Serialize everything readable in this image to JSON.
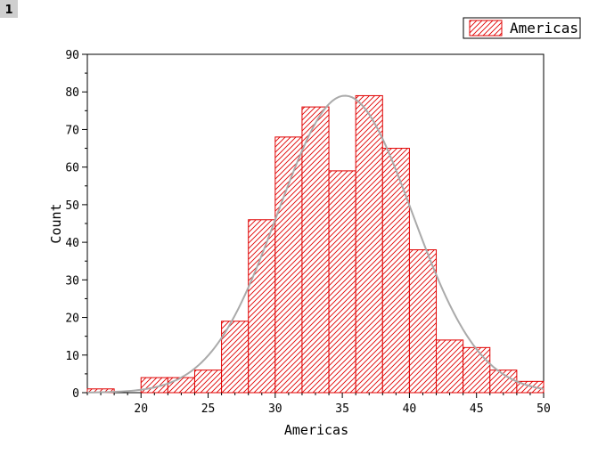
{
  "page": {
    "badge": "1"
  },
  "chart_data": {
    "type": "bar",
    "subtype": "histogram",
    "xlabel": "Americas",
    "ylabel": "Count",
    "xlim": [
      16,
      50
    ],
    "ylim": [
      0,
      90
    ],
    "x_ticks": [
      20,
      25,
      30,
      35,
      40,
      45,
      50
    ],
    "y_ticks": [
      0,
      10,
      20,
      30,
      40,
      50,
      60,
      70,
      80,
      90
    ],
    "legend": {
      "placement": "top-right",
      "entries": [
        "Americas"
      ]
    },
    "grid": false,
    "series": [
      {
        "name": "Americas",
        "bin_width": 2,
        "bins": [
          {
            "start": 16,
            "end": 18,
            "count": 1
          },
          {
            "start": 18,
            "end": 20,
            "count": 0
          },
          {
            "start": 20,
            "end": 22,
            "count": 4
          },
          {
            "start": 22,
            "end": 24,
            "count": 4
          },
          {
            "start": 24,
            "end": 26,
            "count": 6
          },
          {
            "start": 26,
            "end": 28,
            "count": 19
          },
          {
            "start": 28,
            "end": 30,
            "count": 46
          },
          {
            "start": 30,
            "end": 32,
            "count": 68
          },
          {
            "start": 32,
            "end": 34,
            "count": 76
          },
          {
            "start": 34,
            "end": 36,
            "count": 59
          },
          {
            "start": 36,
            "end": 38,
            "count": 79
          },
          {
            "start": 38,
            "end": 40,
            "count": 65
          },
          {
            "start": 40,
            "end": 42,
            "count": 38
          },
          {
            "start": 42,
            "end": 44,
            "count": 14
          },
          {
            "start": 44,
            "end": 46,
            "count": 12
          },
          {
            "start": 46,
            "end": 48,
            "count": 6
          },
          {
            "start": 48,
            "end": 50,
            "count": 3
          }
        ]
      }
    ],
    "fit_curve": {
      "type": "normal",
      "mean": 35.2,
      "peak": 79,
      "sd": 5.0
    },
    "colors": {
      "bar_edge": "#e00000",
      "hatch": "#e00000",
      "bar_fill": "#ffffff",
      "curve": "#aaaaaa",
      "axis": "#000000"
    }
  }
}
